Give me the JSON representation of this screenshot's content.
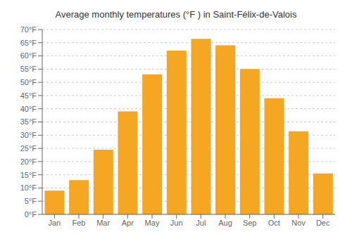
{
  "chart_data": {
    "type": "bar",
    "title": "Average monthly temperatures (°F ) in Saint-Félix-de-Valois",
    "categories": [
      "Jan",
      "Feb",
      "Mar",
      "Apr",
      "May",
      "Jun",
      "Jul",
      "Aug",
      "Sep",
      "Oct",
      "Nov",
      "Dec"
    ],
    "values": [
      9,
      13,
      24.5,
      39,
      53,
      62,
      66.5,
      64,
      55,
      44,
      31.5,
      15.5
    ],
    "color": "#F5A623",
    "ylim": [
      0,
      70
    ],
    "yticks": [
      {
        "value": 0,
        "label": "0°F"
      },
      {
        "value": 5,
        "label": "5°F"
      },
      {
        "value": 10,
        "label": "10°F"
      },
      {
        "value": 15,
        "label": "15°F"
      },
      {
        "value": 20,
        "label": "20°F"
      },
      {
        "value": 25,
        "label": "25°F"
      },
      {
        "value": 30,
        "label": "30°F"
      },
      {
        "value": 35,
        "label": "35°F"
      },
      {
        "value": 40,
        "label": "40°F"
      },
      {
        "value": 45,
        "label": "45°F"
      },
      {
        "value": 50,
        "label": "50°F"
      },
      {
        "value": 55,
        "label": "55°F"
      },
      {
        "value": 60,
        "label": "60°F"
      },
      {
        "value": 65,
        "label": "65°F"
      },
      {
        "value": 70,
        "label": "70°F"
      }
    ],
    "grid": true
  }
}
